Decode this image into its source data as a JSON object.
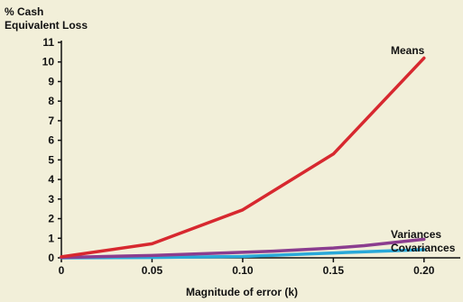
{
  "chart_data": {
    "type": "line",
    "title": "",
    "ylabel_lines": [
      "% Cash",
      "Equivalent Loss"
    ],
    "xlabel": "Magnitude of error (k)",
    "xlim": [
      0,
      0.22
    ],
    "ylim": [
      0,
      11
    ],
    "x_ticks": [
      0,
      0.05,
      0.1,
      0.15,
      0.2
    ],
    "x_tick_labels": [
      "0",
      "0.05",
      "0.10",
      "0.15",
      "0.20"
    ],
    "y_ticks": [
      0,
      1,
      2,
      3,
      4,
      5,
      6,
      7,
      8,
      9,
      10,
      11
    ],
    "y_tick_labels": [
      "0",
      "1",
      "2",
      "3",
      "4",
      "5",
      "6",
      "7",
      "8",
      "9",
      "10",
      "11"
    ],
    "grid": false,
    "series": [
      {
        "name": "Means",
        "color": "#d7282f",
        "x": [
          0,
          0.05,
          0.1,
          0.15,
          0.2
        ],
        "values": [
          0.05,
          0.72,
          2.45,
          5.3,
          10.2
        ]
      },
      {
        "name": "Variances",
        "color": "#8b3d8f",
        "x": [
          0,
          0.05,
          0.1,
          0.117,
          0.15,
          0.167,
          0.2
        ],
        "values": [
          0.02,
          0.12,
          0.28,
          0.34,
          0.5,
          0.62,
          0.95
        ]
      },
      {
        "name": "Covariances",
        "color": "#29a9d9",
        "x": [
          0,
          0.05,
          0.1,
          0.15,
          0.2
        ],
        "values": [
          0.0,
          0.02,
          0.07,
          0.25,
          0.42
        ]
      }
    ]
  }
}
